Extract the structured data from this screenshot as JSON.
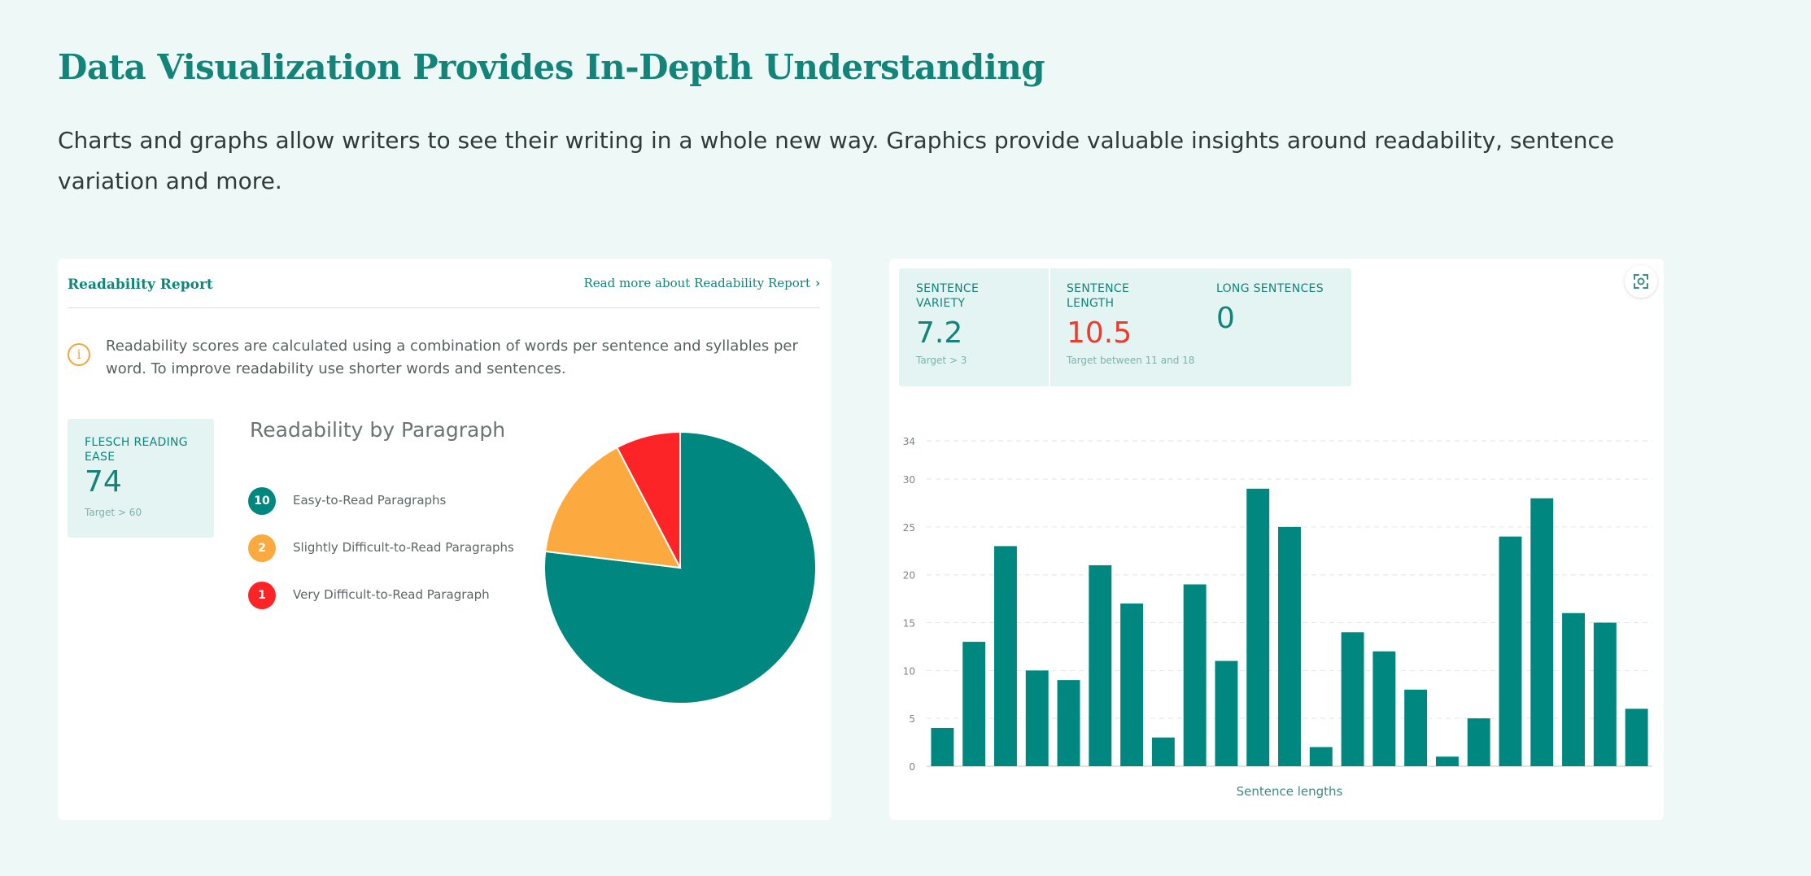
{
  "page": {
    "heading": "Data Visualization Provides In-Depth Understanding",
    "subtitle": "Charts and graphs allow writers to see their writing in a whole new way. Graphics provide valuable insights around readability, sentence variation and more."
  },
  "readability_card": {
    "title": "Readability Report",
    "link_label": "Read more about Readability Report",
    "info_text": "Readability scores are calculated using a combination of words per sentence and syllables per word. To improve readability use shorter words and sentences.",
    "flesch": {
      "label": "FLESCH READING EASE",
      "value": "74",
      "target": "Target > 60"
    },
    "chart_title": "Readability by Paragraph",
    "legend": [
      {
        "count": "10",
        "label": "Easy-to-Read Paragraphs",
        "color": "#00877f"
      },
      {
        "count": "2",
        "label": "Slightly Difficult-to-Read Paragraphs",
        "color": "#fca940"
      },
      {
        "count": "1",
        "label": "Very Difficult-to-Read Paragraph",
        "color": "#fd2427"
      }
    ]
  },
  "sentence_card": {
    "stats": [
      {
        "label": "SENTENCE VARIETY",
        "value": "7.2",
        "target": "Target > 3",
        "color": "#128479"
      },
      {
        "label": "SENTENCE LENGTH",
        "value": "10.5",
        "target": "Target between 11 and 18",
        "color": "#f03a2e"
      },
      {
        "label": "LONG SENTENCES",
        "value": "0",
        "target": "",
        "color": "#128479"
      }
    ],
    "expand_icon": "focus-frame-icon"
  },
  "colors": {
    "teal": "#00877f",
    "orange": "#fca940",
    "red": "#fd2427",
    "background": "#eef8f6"
  },
  "chart_data": [
    {
      "type": "pie",
      "title": "Readability by Paragraph",
      "categories": [
        "Easy-to-Read Paragraphs",
        "Slightly Difficult-to-Read Paragraphs",
        "Very Difficult-to-Read Paragraph"
      ],
      "values": [
        10,
        2,
        1
      ],
      "colors": [
        "#00877f",
        "#fca940",
        "#fd2427"
      ]
    },
    {
      "type": "bar",
      "xlabel": "Sentence lengths",
      "ylabel": "",
      "ylim": [
        0,
        34
      ],
      "yticks": [
        0,
        5,
        10,
        15,
        20,
        25,
        30,
        34
      ],
      "grid": true,
      "values": [
        4,
        13,
        23,
        10,
        9,
        21,
        17,
        3,
        19,
        11,
        29,
        25,
        2,
        14,
        12,
        8,
        1,
        5,
        24,
        28,
        16,
        15,
        6
      ],
      "color": "#00877f"
    }
  ]
}
